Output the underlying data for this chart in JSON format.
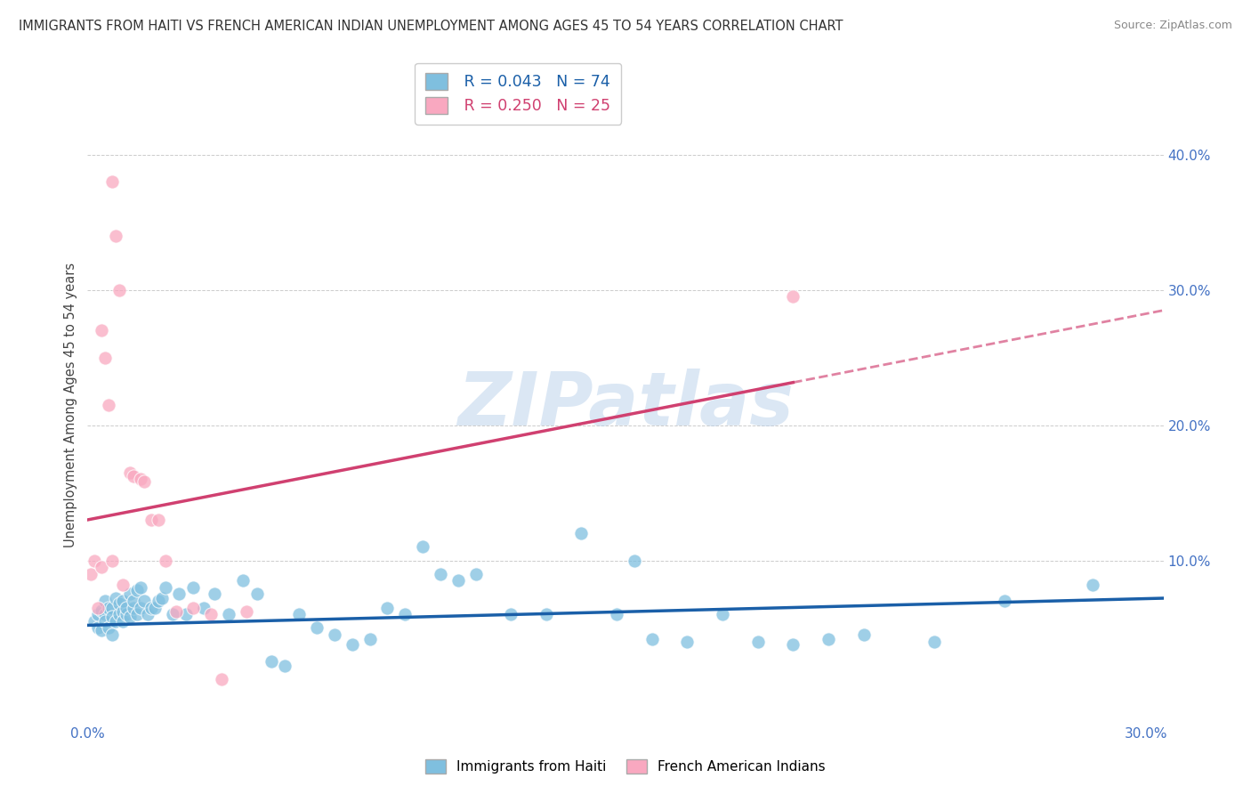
{
  "title": "IMMIGRANTS FROM HAITI VS FRENCH AMERICAN INDIAN UNEMPLOYMENT AMONG AGES 45 TO 54 YEARS CORRELATION CHART",
  "source": "Source: ZipAtlas.com",
  "ylabel": "Unemployment Among Ages 45 to 54 years",
  "xlim": [
    0.0,
    0.305
  ],
  "ylim": [
    -0.02,
    0.45
  ],
  "yticks": [
    0.0,
    0.1,
    0.2,
    0.3,
    0.4
  ],
  "ytick_labels": [
    "",
    "10.0%",
    "20.0%",
    "30.0%",
    "40.0%"
  ],
  "xticks": [
    0.0,
    0.05,
    0.1,
    0.15,
    0.2,
    0.25,
    0.3
  ],
  "xtick_labels": [
    "0.0%",
    "",
    "",
    "",
    "",
    "",
    "30.0%"
  ],
  "watermark": "ZIPatlas",
  "legend_haiti_R": "R = 0.043",
  "legend_haiti_N": "N = 74",
  "legend_french_R": "R = 0.250",
  "legend_french_N": "N = 25",
  "color_haiti": "#7fbfdf",
  "color_french": "#f9a8c0",
  "color_haiti_line": "#1a5fa8",
  "color_french_line": "#d04070",
  "haiti_scatter_x": [
    0.002,
    0.003,
    0.003,
    0.004,
    0.004,
    0.005,
    0.005,
    0.005,
    0.006,
    0.006,
    0.007,
    0.007,
    0.007,
    0.008,
    0.008,
    0.009,
    0.009,
    0.01,
    0.01,
    0.01,
    0.011,
    0.011,
    0.012,
    0.012,
    0.013,
    0.013,
    0.014,
    0.014,
    0.015,
    0.015,
    0.016,
    0.017,
    0.018,
    0.019,
    0.02,
    0.021,
    0.022,
    0.024,
    0.026,
    0.028,
    0.03,
    0.033,
    0.036,
    0.04,
    0.044,
    0.048,
    0.052,
    0.056,
    0.06,
    0.065,
    0.07,
    0.075,
    0.08,
    0.085,
    0.09,
    0.095,
    0.1,
    0.105,
    0.11,
    0.12,
    0.13,
    0.14,
    0.15,
    0.155,
    0.16,
    0.17,
    0.18,
    0.19,
    0.2,
    0.21,
    0.22,
    0.24,
    0.26,
    0.285
  ],
  "haiti_scatter_y": [
    0.055,
    0.05,
    0.06,
    0.063,
    0.048,
    0.06,
    0.055,
    0.07,
    0.05,
    0.065,
    0.045,
    0.065,
    0.058,
    0.072,
    0.055,
    0.06,
    0.068,
    0.062,
    0.055,
    0.07,
    0.06,
    0.065,
    0.075,
    0.058,
    0.065,
    0.07,
    0.078,
    0.06,
    0.08,
    0.065,
    0.07,
    0.06,
    0.065,
    0.065,
    0.07,
    0.072,
    0.08,
    0.06,
    0.075,
    0.06,
    0.08,
    0.065,
    0.075,
    0.06,
    0.085,
    0.075,
    0.025,
    0.022,
    0.06,
    0.05,
    0.045,
    0.038,
    0.042,
    0.065,
    0.06,
    0.11,
    0.09,
    0.085,
    0.09,
    0.06,
    0.06,
    0.12,
    0.06,
    0.1,
    0.042,
    0.04,
    0.06,
    0.04,
    0.038,
    0.042,
    0.045,
    0.04,
    0.07,
    0.082
  ],
  "french_scatter_x": [
    0.001,
    0.002,
    0.003,
    0.004,
    0.004,
    0.005,
    0.006,
    0.007,
    0.007,
    0.008,
    0.009,
    0.01,
    0.012,
    0.013,
    0.015,
    0.016,
    0.018,
    0.02,
    0.022,
    0.025,
    0.03,
    0.035,
    0.038,
    0.045,
    0.2
  ],
  "french_scatter_y": [
    0.09,
    0.1,
    0.065,
    0.27,
    0.095,
    0.25,
    0.215,
    0.38,
    0.1,
    0.34,
    0.3,
    0.082,
    0.165,
    0.162,
    0.16,
    0.158,
    0.13,
    0.13,
    0.1,
    0.062,
    0.065,
    0.06,
    0.012,
    0.062,
    0.295
  ],
  "french_line_start_x": 0.0,
  "french_line_end_solid_x": 0.2,
  "french_line_end_dash_x": 0.305,
  "french_line_start_y": 0.13,
  "french_line_end_y": 0.285,
  "haiti_line_start_y": 0.052,
  "haiti_line_end_y": 0.072
}
